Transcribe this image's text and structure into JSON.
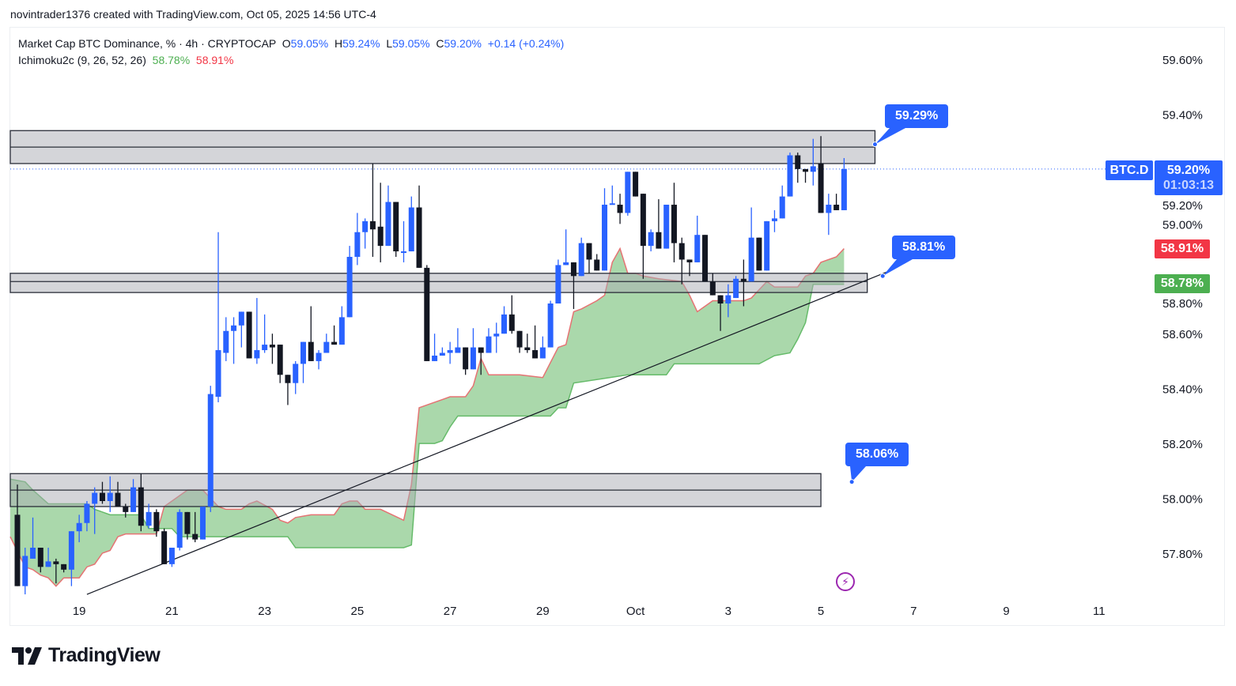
{
  "attribution": "novintrader1376 created with TradingView.com, Oct 05, 2025 14:56 UTC-4",
  "legend": {
    "title": "Market Cap BTC Dominance, % · 4h · CRYPTOCAP",
    "o_label": "O",
    "o": "59.05%",
    "h_label": "H",
    "h": "59.24%",
    "l_label": "L",
    "l": "59.05%",
    "c_label": "C",
    "c": "59.20%",
    "change": "+0.14 (+0.24%)",
    "indicator": "Ichimoku2c (9, 26, 52, 26)",
    "ind_green": "58.78%",
    "ind_red": "58.91%"
  },
  "price_axis": {
    "symbol_tag": "BTC.D",
    "last_price": "59.20%",
    "countdown": "01:03:13",
    "red_tag": "58.91%",
    "green_tag": "58.78%"
  },
  "callouts": [
    {
      "text": "59.29%",
      "price": 59.29
    },
    {
      "text": "58.81%",
      "price": 58.81
    },
    {
      "text": "58.06%",
      "price": 58.06
    }
  ],
  "footer": {
    "logo": "TradingView"
  },
  "icons": {
    "alert": "lightning-bolt-icon"
  },
  "colors": {
    "up": "#2962ff",
    "down": "#131722",
    "cloud_fill": "#a5d6a7",
    "span_red": "#e57373",
    "span_green": "#66bb6a",
    "zone": "#d1d4dc",
    "accent": "#2962ff",
    "red_tag": "#f23645",
    "green_tag": "#4caf50"
  },
  "chart_data": {
    "type": "candlestick",
    "symbol": "BTC.D",
    "interval": "4h",
    "start": "2025-09-17T16:00",
    "y_unit": "%",
    "ylim": [
      57.64,
      59.68
    ],
    "y_ticks": [
      "59.60%",
      "59.40%",
      "59.20%",
      "59.00%",
      "58.80%",
      "58.60%",
      "58.40%",
      "58.20%",
      "58.00%",
      "57.80%"
    ],
    "y_tick_values": [
      59.6,
      59.4,
      59.2,
      59.0,
      58.8,
      58.6,
      58.4,
      58.2,
      58.0,
      57.8
    ],
    "x_ticks": [
      {
        "label": "19",
        "time": "2025-09-19T00:00"
      },
      {
        "label": "21",
        "time": "2025-09-21T00:00"
      },
      {
        "label": "23",
        "time": "2025-09-23T00:00"
      },
      {
        "label": "25",
        "time": "2025-09-25T00:00"
      },
      {
        "label": "27",
        "time": "2025-09-27T00:00"
      },
      {
        "label": "29",
        "time": "2025-09-29T00:00"
      },
      {
        "label": "Oct",
        "time": "2025-10-01T00:00"
      },
      {
        "label": "3",
        "time": "2025-10-03T00:00"
      },
      {
        "label": "5",
        "time": "2025-10-05T00:00"
      },
      {
        "label": "7",
        "time": "2025-10-07T00:00"
      },
      {
        "label": "9",
        "time": "2025-10-09T00:00"
      },
      {
        "label": "11",
        "time": "2025-10-11T00:00"
      }
    ],
    "ohlc": [
      [
        57.94,
        58.05,
        57.68,
        57.68
      ],
      [
        57.68,
        57.82,
        57.65,
        57.79
      ],
      [
        57.78,
        57.93,
        57.78,
        57.82
      ],
      [
        57.82,
        57.82,
        57.73,
        57.75
      ],
      [
        57.75,
        57.82,
        57.75,
        57.77
      ],
      [
        57.77,
        57.78,
        57.69,
        57.76
      ],
      [
        57.76,
        57.76,
        57.73,
        57.74
      ],
      [
        57.74,
        57.88,
        57.68,
        57.88
      ],
      [
        57.88,
        57.94,
        57.84,
        57.91
      ],
      [
        57.91,
        57.99,
        57.88,
        57.98
      ],
      [
        57.98,
        58.04,
        57.87,
        58.02
      ],
      [
        58.02,
        58.06,
        57.98,
        57.99
      ],
      [
        57.99,
        58.08,
        57.95,
        58.02
      ],
      [
        58.02,
        58.06,
        57.97,
        57.97
      ],
      [
        57.97,
        57.98,
        57.93,
        57.95
      ],
      [
        57.95,
        58.07,
        57.95,
        58.04
      ],
      [
        58.04,
        58.09,
        57.88,
        57.9
      ],
      [
        57.9,
        57.98,
        57.89,
        57.95
      ],
      [
        57.95,
        57.96,
        57.86,
        57.88
      ],
      [
        57.88,
        57.89,
        57.76,
        57.76
      ],
      [
        57.76,
        57.82,
        57.75,
        57.82
      ],
      [
        57.82,
        57.96,
        57.81,
        57.95
      ],
      [
        57.95,
        57.95,
        57.85,
        57.87
      ],
      [
        57.87,
        57.95,
        57.84,
        57.85
      ],
      [
        57.85,
        57.97,
        57.85,
        57.97
      ],
      [
        57.97,
        58.41,
        57.95,
        58.38
      ],
      [
        58.37,
        58.97,
        58.35,
        58.54
      ],
      [
        58.53,
        58.66,
        58.5,
        58.61
      ],
      [
        58.61,
        58.66,
        58.49,
        58.63
      ],
      [
        58.63,
        58.68,
        58.55,
        58.68
      ],
      [
        58.68,
        58.68,
        58.51,
        58.51
      ],
      [
        58.51,
        58.73,
        58.49,
        58.54
      ],
      [
        58.54,
        58.67,
        58.53,
        58.56
      ],
      [
        58.56,
        58.6,
        58.49,
        58.55
      ],
      [
        58.56,
        58.56,
        58.42,
        58.45
      ],
      [
        58.45,
        58.45,
        58.34,
        58.42
      ],
      [
        58.42,
        58.5,
        58.38,
        58.49
      ],
      [
        58.49,
        58.57,
        58.42,
        58.57
      ],
      [
        58.57,
        58.7,
        58.5,
        58.5
      ],
      [
        58.5,
        58.54,
        58.47,
        58.53
      ],
      [
        58.53,
        58.6,
        58.53,
        58.57
      ],
      [
        58.57,
        58.63,
        58.56,
        58.56
      ],
      [
        58.56,
        58.7,
        58.56,
        58.66
      ],
      [
        58.66,
        58.92,
        58.66,
        58.88
      ],
      [
        58.88,
        59.04,
        58.85,
        58.97
      ],
      [
        58.97,
        59.02,
        58.91,
        59.01
      ],
      [
        59.01,
        59.22,
        58.88,
        58.98
      ],
      [
        58.99,
        59.15,
        58.86,
        58.92
      ],
      [
        58.92,
        59.14,
        58.92,
        59.08
      ],
      [
        59.08,
        59.08,
        58.88,
        58.9
      ],
      [
        58.9,
        59.01,
        58.86,
        58.9
      ],
      [
        58.9,
        59.1,
        58.9,
        59.06
      ],
      [
        59.06,
        59.14,
        58.84,
        58.84
      ],
      [
        58.84,
        58.85,
        58.5,
        58.5
      ],
      [
        58.5,
        58.6,
        58.5,
        58.52
      ],
      [
        58.52,
        58.55,
        58.52,
        58.53
      ],
      [
        58.53,
        58.57,
        58.49,
        58.54
      ],
      [
        58.53,
        58.62,
        58.53,
        58.55
      ],
      [
        58.55,
        58.55,
        58.45,
        58.47
      ],
      [
        58.47,
        58.62,
        58.47,
        58.55
      ],
      [
        58.55,
        58.55,
        58.45,
        58.53
      ],
      [
        58.53,
        58.62,
        58.53,
        58.59
      ],
      [
        58.59,
        58.64,
        58.53,
        58.6
      ],
      [
        58.6,
        58.7,
        58.6,
        58.67
      ],
      [
        58.67,
        58.74,
        58.6,
        58.61
      ],
      [
        58.61,
        58.61,
        58.53,
        58.55
      ],
      [
        58.55,
        58.6,
        58.53,
        58.54
      ],
      [
        58.54,
        58.63,
        58.51,
        58.51
      ],
      [
        58.51,
        58.59,
        58.51,
        58.55
      ],
      [
        58.55,
        58.72,
        58.55,
        58.71
      ],
      [
        58.71,
        58.87,
        58.71,
        58.85
      ],
      [
        58.85,
        58.98,
        58.85,
        58.86
      ],
      [
        58.86,
        58.86,
        58.69,
        58.81
      ],
      [
        58.81,
        58.95,
        58.81,
        58.93
      ],
      [
        58.93,
        58.93,
        58.82,
        58.87
      ],
      [
        58.87,
        58.89,
        58.83,
        58.83
      ],
      [
        58.83,
        59.13,
        58.83,
        59.07
      ],
      [
        59.07,
        59.14,
        59.07,
        59.075
      ],
      [
        59.07,
        59.11,
        59.0,
        59.04
      ],
      [
        59.04,
        59.19,
        59.03,
        59.19
      ],
      [
        59.19,
        59.19,
        59.1,
        59.1
      ],
      [
        59.11,
        59.11,
        58.8,
        58.92
      ],
      [
        58.92,
        58.98,
        58.9,
        58.97
      ],
      [
        58.97,
        59.09,
        58.91,
        58.91
      ],
      [
        58.91,
        59.07,
        58.91,
        59.07
      ],
      [
        59.07,
        59.15,
        58.86,
        58.93
      ],
      [
        58.93,
        58.95,
        58.78,
        58.87
      ],
      [
        58.87,
        58.87,
        58.81,
        58.86
      ],
      [
        58.86,
        59.03,
        58.86,
        58.96
      ],
      [
        58.96,
        58.96,
        58.79,
        58.79
      ],
      [
        58.79,
        58.82,
        58.74,
        58.74
      ],
      [
        58.74,
        58.74,
        58.61,
        58.71
      ],
      [
        58.71,
        58.78,
        58.66,
        58.74
      ],
      [
        58.73,
        58.81,
        58.73,
        58.8
      ],
      [
        58.8,
        58.87,
        58.7,
        58.79
      ],
      [
        58.79,
        59.06,
        58.79,
        58.95
      ],
      [
        58.95,
        58.95,
        58.83,
        58.83
      ],
      [
        58.83,
        59.01,
        58.83,
        59.01
      ],
      [
        59.01,
        59.05,
        58.97,
        59.02
      ],
      [
        59.02,
        59.14,
        59.02,
        59.1
      ],
      [
        59.1,
        59.26,
        59.1,
        59.25
      ],
      [
        59.25,
        59.26,
        59.15,
        59.2
      ],
      [
        59.2,
        59.2,
        59.15,
        59.19
      ],
      [
        59.19,
        59.31,
        59.14,
        59.21
      ],
      [
        59.22,
        59.32,
        59.04,
        59.04
      ],
      [
        59.04,
        59.11,
        58.96,
        59.07
      ],
      [
        59.07,
        59.11,
        59.05,
        59.05
      ],
      [
        59.05,
        59.24,
        59.05,
        59.2
      ]
    ],
    "ichimoku_span_red": [
      [
        "2025-09-17T16:00",
        57.86
      ],
      [
        "2025-09-17T20:00",
        57.75
      ],
      [
        "2025-09-18T00:00",
        57.74
      ],
      [
        "2025-09-18T04:00",
        57.72
      ],
      [
        "2025-09-18T08:00",
        57.71
      ],
      [
        "2025-09-18T12:00",
        57.68
      ],
      [
        "2025-09-18T16:00",
        57.71
      ],
      [
        "2025-09-19T00:00",
        57.71
      ],
      [
        "2025-09-19T04:00",
        57.75
      ],
      [
        "2025-09-19T08:00",
        57.76
      ],
      [
        "2025-09-19T12:00",
        57.8
      ],
      [
        "2025-09-19T16:00",
        57.81
      ],
      [
        "2025-09-19T20:00",
        57.86
      ],
      [
        "2025-09-20T00:00",
        57.87
      ],
      [
        "2025-09-20T16:00",
        57.87
      ],
      [
        "2025-09-20T20:00",
        57.97
      ],
      [
        "2025-09-21T08:00",
        58.03
      ],
      [
        "2025-09-21T16:00",
        58.03
      ],
      [
        "2025-09-22T00:00",
        57.97
      ],
      [
        "2025-09-22T04:00",
        57.96
      ],
      [
        "2025-09-22T08:00",
        57.96
      ],
      [
        "2025-09-22T12:00",
        57.96
      ],
      [
        "2025-09-22T16:00",
        57.98
      ],
      [
        "2025-09-22T20:00",
        57.99
      ],
      [
        "2025-09-23T04:00",
        57.96
      ],
      [
        "2025-09-23T08:00",
        57.92
      ],
      [
        "2025-09-23T12:00",
        57.91
      ],
      [
        "2025-09-23T16:00",
        57.93
      ],
      [
        "2025-09-24T00:00",
        57.94
      ],
      [
        "2025-09-24T12:00",
        57.94
      ],
      [
        "2025-09-24T16:00",
        57.98
      ],
      [
        "2025-09-24T20:00",
        57.99
      ],
      [
        "2025-09-25T00:00",
        57.99
      ],
      [
        "2025-09-25T04:00",
        57.96
      ],
      [
        "2025-09-25T12:00",
        57.96
      ],
      [
        "2025-09-26T00:00",
        57.92
      ],
      [
        "2025-09-26T04:00",
        58.05
      ],
      [
        "2025-09-26T08:00",
        58.33
      ],
      [
        "2025-09-26T12:00",
        58.34
      ],
      [
        "2025-09-26T20:00",
        58.36
      ],
      [
        "2025-09-27T00:00",
        58.37
      ],
      [
        "2025-09-27T08:00",
        58.37
      ],
      [
        "2025-09-27T12:00",
        58.41
      ],
      [
        "2025-09-27T16:00",
        58.51
      ],
      [
        "2025-09-27T20:00",
        58.45
      ],
      [
        "2025-09-28T12:00",
        58.45
      ],
      [
        "2025-09-29T00:00",
        58.44
      ],
      [
        "2025-09-29T08:00",
        58.55
      ],
      [
        "2025-09-29T12:00",
        58.56
      ],
      [
        "2025-09-29T16:00",
        58.68
      ],
      [
        "2025-09-29T20:00",
        58.69
      ],
      [
        "2025-09-30T04:00",
        58.72
      ],
      [
        "2025-09-30T08:00",
        58.74
      ],
      [
        "2025-09-30T12:00",
        58.86
      ],
      [
        "2025-09-30T16:00",
        58.91
      ],
      [
        "2025-09-30T20:00",
        58.82
      ],
      [
        "2025-10-01T00:00",
        58.82
      ],
      [
        "2025-10-01T04:00",
        58.81
      ],
      [
        "2025-10-01T12:00",
        58.8
      ],
      [
        "2025-10-02T00:00",
        58.79
      ],
      [
        "2025-10-02T04:00",
        58.74
      ],
      [
        "2025-10-02T08:00",
        58.68
      ],
      [
        "2025-10-02T12:00",
        58.7
      ],
      [
        "2025-10-02T16:00",
        58.72
      ],
      [
        "2025-10-03T08:00",
        58.72
      ],
      [
        "2025-10-03T12:00",
        58.73
      ],
      [
        "2025-10-03T16:00",
        58.76
      ],
      [
        "2025-10-03T20:00",
        58.79
      ],
      [
        "2025-10-04T00:00",
        58.77
      ],
      [
        "2025-10-04T12:00",
        58.77
      ],
      [
        "2025-10-04T16:00",
        58.81
      ],
      [
        "2025-10-04T20:00",
        58.82
      ],
      [
        "2025-10-05T00:00",
        58.86
      ],
      [
        "2025-10-05T08:00",
        58.88
      ],
      [
        "2025-10-05T12:00",
        58.91
      ]
    ],
    "ichimoku_span_green": [
      [
        "2025-09-17T16:00",
        58.07
      ],
      [
        "2025-09-17T20:00",
        58.06
      ],
      [
        "2025-09-18T00:00",
        58.03
      ],
      [
        "2025-09-18T08:00",
        57.98
      ],
      [
        "2025-09-18T12:00",
        57.98
      ],
      [
        "2025-09-19T04:00",
        57.98
      ],
      [
        "2025-09-19T08:00",
        57.96
      ],
      [
        "2025-09-19T16:00",
        57.94
      ],
      [
        "2025-09-20T08:00",
        57.94
      ],
      [
        "2025-09-20T12:00",
        57.89
      ],
      [
        "2025-09-21T00:00",
        57.89
      ],
      [
        "2025-09-21T04:00",
        57.86
      ],
      [
        "2025-09-23T12:00",
        57.86
      ],
      [
        "2025-09-23T16:00",
        57.82
      ],
      [
        "2025-09-26T00:00",
        57.82
      ],
      [
        "2025-09-26T04:00",
        57.83
      ],
      [
        "2025-09-26T08:00",
        58.2
      ],
      [
        "2025-09-26T16:00",
        58.2
      ],
      [
        "2025-09-26T20:00",
        58.21
      ],
      [
        "2025-09-27T00:00",
        58.26
      ],
      [
        "2025-09-27T04:00",
        58.3
      ],
      [
        "2025-09-29T04:00",
        58.3
      ],
      [
        "2025-09-29T08:00",
        58.33
      ],
      [
        "2025-09-29T12:00",
        58.33
      ],
      [
        "2025-09-29T16:00",
        58.42
      ],
      [
        "2025-09-30T20:00",
        58.45
      ],
      [
        "2025-10-01T16:00",
        58.45
      ],
      [
        "2025-10-01T20:00",
        58.49
      ],
      [
        "2025-10-03T16:00",
        58.49
      ],
      [
        "2025-10-04T00:00",
        58.52
      ],
      [
        "2025-10-04T08:00",
        58.53
      ],
      [
        "2025-10-04T12:00",
        58.58
      ],
      [
        "2025-10-04T16:00",
        58.64
      ],
      [
        "2025-10-04T20:00",
        58.78
      ],
      [
        "2025-10-05T12:00",
        58.78
      ]
    ],
    "zones": [
      {
        "top": 59.34,
        "mid": 59.28,
        "bottom": 59.22,
        "end": "2025-10-06T04:00"
      },
      {
        "top": 58.82,
        "mid": 58.79,
        "bottom": 58.75,
        "end": "2025-10-06T00:00"
      },
      {
        "top": 58.09,
        "mid": 58.03,
        "bottom": 57.97,
        "end": "2025-10-05T00:00"
      }
    ],
    "trendline": {
      "from": [
        "2025-09-19T04:00",
        57.65
      ],
      "to": [
        "2025-10-06T12:00",
        58.83
      ]
    },
    "callout_anchors": [
      [
        "2025-10-06T04:00",
        59.29
      ],
      [
        "2025-10-06T08:00",
        58.81
      ],
      [
        "2025-10-05T16:00",
        58.06
      ]
    ],
    "last_price": 59.2,
    "grid": false,
    "legend_position": "top-left"
  }
}
